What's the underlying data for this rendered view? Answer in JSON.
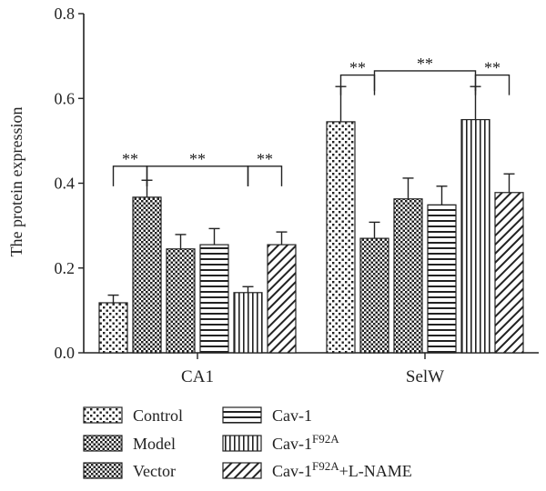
{
  "chart_data": {
    "type": "bar",
    "ylabel": "The protein expression",
    "ylim": [
      0,
      0.8
    ],
    "yticks": [
      "0.0",
      "0.2",
      "0.4",
      "0.6",
      "0.8"
    ],
    "categories": [
      "CA1",
      "SelW"
    ],
    "series": [
      {
        "name": "Control",
        "values": [
          0.118,
          0.545
        ],
        "errors": [
          0.018,
          0.083
        ],
        "pattern": "dots"
      },
      {
        "name": "Model",
        "values": [
          0.367,
          0.27
        ],
        "errors": [
          0.04,
          0.038
        ],
        "pattern": "check"
      },
      {
        "name": "Vector",
        "values": [
          0.245,
          0.363
        ],
        "errors": [
          0.034,
          0.049
        ],
        "pattern": "check"
      },
      {
        "name": "Cav-1",
        "values": [
          0.255,
          0.349
        ],
        "errors": [
          0.038,
          0.044
        ],
        "pattern": "hlines"
      },
      {
        "name": "Cav-1F92A",
        "name_base": "Cav-1",
        "name_sup": "F92A",
        "name_tail": "",
        "values": [
          0.142,
          0.55
        ],
        "errors": [
          0.014,
          0.078
        ],
        "pattern": "vlines"
      },
      {
        "name": "Cav-1F92A+L-NAME",
        "name_base": "Cav-1",
        "name_sup": "F92A",
        "name_tail": "+L-NAME",
        "values": [
          0.255,
          0.378
        ],
        "errors": [
          0.03,
          0.044
        ],
        "pattern": "diag"
      }
    ],
    "significance": [
      {
        "category": 0,
        "from": 0,
        "to": 1,
        "label": "**",
        "level": 0.44
      },
      {
        "category": 0,
        "from": 1,
        "to": 4,
        "label": "**",
        "level": 0.44
      },
      {
        "category": 0,
        "from": 4,
        "to": 5,
        "label": "**",
        "level": 0.44
      },
      {
        "category": 1,
        "from": 0,
        "to": 1,
        "label": "**",
        "level": 0.655
      },
      {
        "category": 1,
        "from": 1,
        "to": 4,
        "label": "**",
        "level": 0.665
      },
      {
        "category": 1,
        "from": 4,
        "to": 5,
        "label": "**",
        "level": 0.655
      }
    ],
    "legend_position": "bottom",
    "grid": false
  }
}
